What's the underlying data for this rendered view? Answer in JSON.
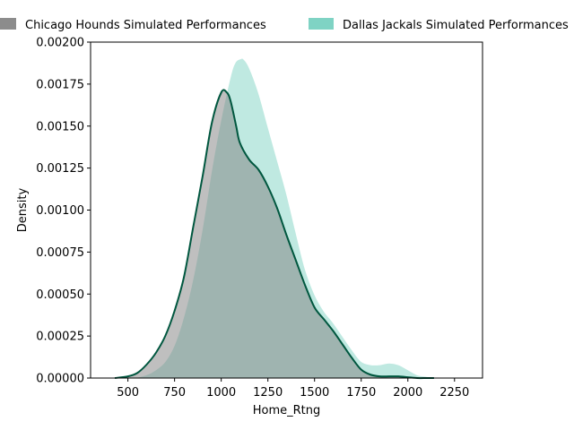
{
  "chart_data": {
    "type": "area",
    "xlabel": "Home_Rtng",
    "ylabel": "Density",
    "xlim": [
      300,
      2400
    ],
    "ylim": [
      0,
      0.002
    ],
    "x_ticks": [
      500,
      750,
      1000,
      1250,
      1500,
      1750,
      2000,
      2250
    ],
    "x_tick_labels": [
      "500",
      "750",
      "1000",
      "1250",
      "1500",
      "1750",
      "2000",
      "2250"
    ],
    "y_ticks": [
      0,
      0.00025,
      0.0005,
      0.00075,
      0.001,
      0.00125,
      0.0015,
      0.00175,
      0.002
    ],
    "y_tick_labels": [
      "0.00000",
      "0.00025",
      "0.00050",
      "0.00075",
      "0.00100",
      "0.00125",
      "0.00150",
      "0.00175",
      "0.00200"
    ],
    "grid": false,
    "legend_position": "top",
    "series": [
      {
        "name": "Dallas Jackals Simulated Performances",
        "color": "#7fd3c4",
        "fill_opacity": 0.5,
        "x": [
          530,
          600,
          650,
          700,
          750,
          800,
          850,
          900,
          950,
          1000,
          1050,
          1075,
          1100,
          1120,
          1150,
          1200,
          1250,
          1300,
          1350,
          1400,
          1450,
          1500,
          1550,
          1600,
          1650,
          1700,
          1750,
          1800,
          1850,
          1900,
          1950,
          2000,
          2050,
          2100,
          2140
        ],
        "y": [
          0,
          2e-05,
          5e-05,
          0.0001,
          0.0002,
          0.00037,
          0.0006,
          0.0009,
          0.00125,
          0.00155,
          0.0018,
          0.00188,
          0.0019,
          0.0019,
          0.00185,
          0.0017,
          0.0015,
          0.0013,
          0.0011,
          0.00087,
          0.00065,
          0.0005,
          0.0004,
          0.00033,
          0.00025,
          0.00017,
          0.0001,
          8e-05,
          8e-05,
          9e-05,
          8e-05,
          5e-05,
          2e-05,
          1e-05,
          0
        ]
      },
      {
        "name": "Chicago Hounds Simulated Performances",
        "color": "#7f7f7f",
        "fill_opacity": 0.5,
        "x": [
          430,
          500,
          550,
          600,
          650,
          700,
          750,
          800,
          850,
          900,
          950,
          1000,
          1030,
          1050,
          1080,
          1100,
          1150,
          1200,
          1250,
          1300,
          1350,
          1400,
          1450,
          1500,
          1550,
          1600,
          1650,
          1700,
          1750,
          1800,
          1850,
          1900,
          1950,
          2000,
          2050,
          2100,
          2140
        ],
        "y": [
          0,
          1e-05,
          3e-05,
          8e-05,
          0.00015,
          0.00025,
          0.0004,
          0.0006,
          0.0009,
          0.0012,
          0.00152,
          0.0017,
          0.0017,
          0.00165,
          0.0015,
          0.0014,
          0.0013,
          0.00124,
          0.00114,
          0.00101,
          0.00085,
          0.0007,
          0.00055,
          0.00042,
          0.00035,
          0.00028,
          0.0002,
          0.00012,
          5e-05,
          2e-05,
          1e-05,
          1e-05,
          1e-05,
          5e-06,
          0,
          0,
          0
        ]
      }
    ]
  },
  "legend": {
    "chicago_label": "Chicago Hounds Simulated Performances",
    "dallas_label": "Dallas Jackals Simulated Performances"
  },
  "colors": {
    "chicago_fill": "#7f7f7f",
    "chicago_line": "#00573f",
    "dallas_fill": "#7fd3c4",
    "dallas_line": "#ffffff"
  }
}
